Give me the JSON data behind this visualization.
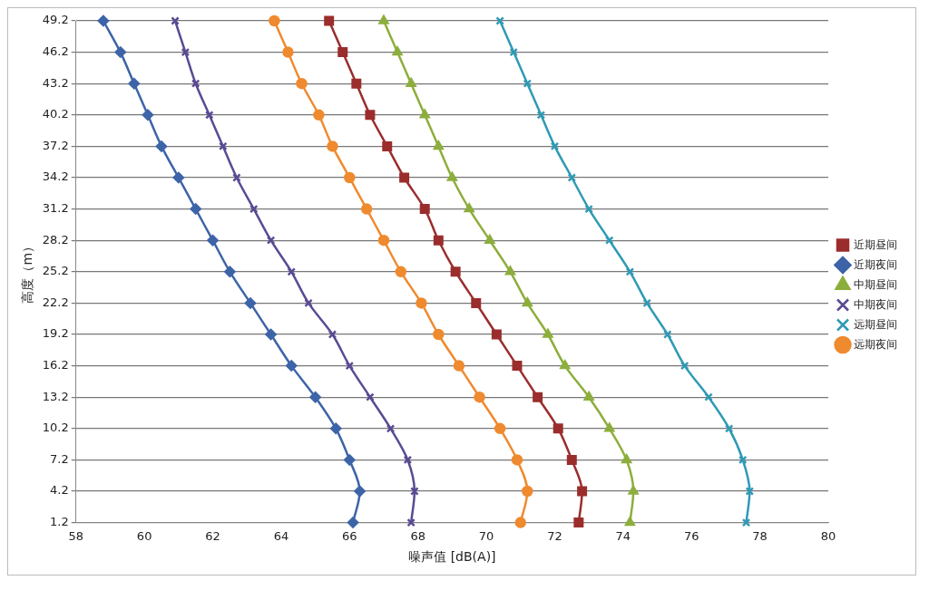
{
  "chart_data": {
    "type": "line",
    "orientation": "horizontal",
    "xlabel": "噪声值 [dB(A)]",
    "ylabel": "高度（m）",
    "categories": [
      "49.2",
      "46.2",
      "43.2",
      "40.2",
      "37.2",
      "34.2",
      "31.2",
      "28.2",
      "25.2",
      "22.2",
      "19.2",
      "16.2",
      "13.2",
      "10.2",
      "7.2",
      "4.2",
      "1.2"
    ],
    "series": [
      {
        "name": "近期昼间",
        "color": "#9b2d2d",
        "marker": "square",
        "values": [
          65.4,
          65.8,
          66.2,
          66.6,
          67.1,
          67.6,
          68.2,
          68.6,
          69.1,
          69.7,
          70.3,
          70.9,
          71.5,
          72.1,
          72.5,
          72.8,
          72.7
        ]
      },
      {
        "name": "近期夜间",
        "color": "#3d64a8",
        "marker": "diamond",
        "values": [
          58.8,
          59.3,
          59.7,
          60.1,
          60.5,
          61.0,
          61.5,
          62.0,
          62.5,
          63.1,
          63.7,
          64.3,
          65.0,
          65.6,
          66.0,
          66.3,
          66.1
        ]
      },
      {
        "name": "中期昼间",
        "color": "#8cae3c",
        "marker": "triangle",
        "values": [
          67.0,
          67.4,
          67.8,
          68.2,
          68.6,
          69.0,
          69.5,
          70.1,
          70.7,
          71.2,
          71.8,
          72.3,
          73.0,
          73.6,
          74.1,
          74.3,
          74.2
        ]
      },
      {
        "name": "中期夜间",
        "color": "#5a4a94",
        "marker": "cross",
        "values": [
          60.9,
          61.2,
          61.5,
          61.9,
          62.3,
          62.7,
          63.2,
          63.7,
          64.3,
          64.8,
          65.5,
          66.0,
          66.6,
          67.2,
          67.7,
          67.9,
          67.8
        ]
      },
      {
        "name": "远期昼间",
        "color": "#2f9ab5",
        "marker": "cross",
        "values": [
          70.4,
          70.8,
          71.2,
          71.6,
          72.0,
          72.5,
          73.0,
          73.6,
          74.2,
          74.7,
          75.3,
          75.8,
          76.5,
          77.1,
          77.5,
          77.7,
          77.6
        ]
      },
      {
        "name": "远期夜间",
        "color": "#ef8a2e",
        "marker": "circle",
        "values": [
          63.8,
          64.2,
          64.6,
          65.1,
          65.5,
          66.0,
          66.5,
          67.0,
          67.5,
          68.1,
          68.6,
          69.2,
          69.8,
          70.4,
          70.9,
          71.2,
          71.0
        ]
      }
    ],
    "xlim": [
      58,
      80
    ],
    "xticks": [
      58,
      60,
      62,
      64,
      66,
      68,
      70,
      72,
      74,
      76,
      78,
      80
    ],
    "grid": "y",
    "legend": "right"
  }
}
